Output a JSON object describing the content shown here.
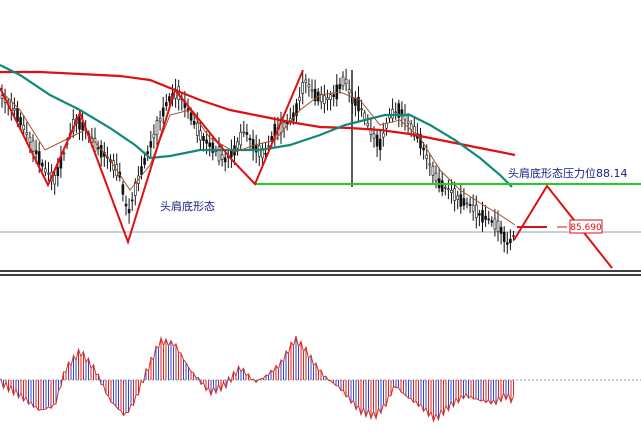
{
  "chart_data": [
    {
      "type": "candlestick",
      "title": "",
      "xlabel": "",
      "ylabel": "",
      "grid": false,
      "annotations": {
        "pattern_label": "头肩底形态",
        "resistance_label": "头肩底形态压力位88.14",
        "resistance_level": 88.14,
        "current_price_tag": "85.690",
        "current_price": 85.69
      },
      "series": [
        {
          "name": "",
          "kind": "moving-average",
          "color": "#dd1111"
        },
        {
          "name": "",
          "kind": "moving-average",
          "color": "#11887a"
        },
        {
          "name": "",
          "kind": "moving-average",
          "color": "#a0522d"
        },
        {
          "name": "",
          "kind": "pattern-outline",
          "color": "#dd1111"
        },
        {
          "name": "",
          "kind": "neckline",
          "color": "#22cc22"
        }
      ]
    },
    {
      "type": "bar",
      "title": "",
      "xlabel": "",
      "ylabel": "",
      "grid": false,
      "series": [
        {
          "name": "",
          "kind": "oscillator-histogram",
          "positive_color": "#3344cc",
          "negative_color": "#dd2222"
        },
        {
          "name": "",
          "kind": "oscillator-line",
          "color": "#cc3333"
        }
      ]
    }
  ]
}
